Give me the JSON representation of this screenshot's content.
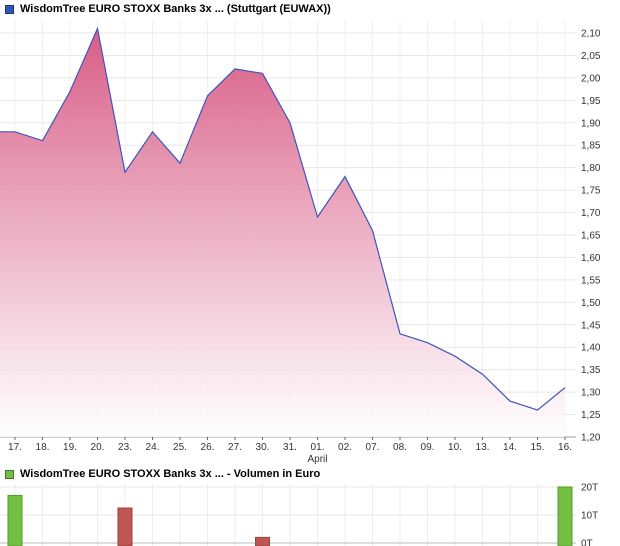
{
  "header": {
    "title": "WisdomTree EURO STOXX Banks 3x ... (Stuttgart (EUWAX))"
  },
  "volume_header": {
    "title": "WisdomTree EURO STOXX Banks 3x ... - Volumen in Euro"
  },
  "colors": {
    "accent_blue": "#2d58b8",
    "accent_green": "#74c042",
    "line": "#3d56b8",
    "fill_top": "#d6527e",
    "fill_bottom": "#ffffff",
    "bar_green": "#74c042",
    "bar_green_border": "#559a2b",
    "bar_red": "#bf5652",
    "bar_red_border": "#9e423f",
    "grid": "#e7e7e7",
    "grid_vertical": "#f0f0f0",
    "axis": "#999999",
    "tick": "#666666",
    "text": "#333333"
  },
  "chart_data": [
    {
      "type": "area",
      "title": "WisdomTree EURO STOXX Banks 3x ... (Stuttgart (EUWAX))",
      "x_tick_labels": [
        "17.",
        "18.",
        "19.",
        "20.",
        "23.",
        "24.",
        "25.",
        "26.",
        "27.",
        "30.",
        "31.",
        "01.",
        "02.",
        "07.",
        "08.",
        "09.",
        "10.",
        "13.",
        "14.",
        "15.",
        "16."
      ],
      "month_label": "April",
      "month_label_at_index": 11,
      "values": [
        1.88,
        1.86,
        1.97,
        2.11,
        1.79,
        1.88,
        1.81,
        1.96,
        2.02,
        2.01,
        1.9,
        1.69,
        1.78,
        1.66,
        1.43,
        1.41,
        1.38,
        1.34,
        1.28,
        1.26,
        1.31
      ],
      "ylim": [
        1.2,
        2.125
      ],
      "grid": true,
      "legend_position": "none",
      "y_ticks": [
        {
          "value": 2.1,
          "label": "2,10"
        },
        {
          "value": 2.05,
          "label": "2,05"
        },
        {
          "value": 2.0,
          "label": "2,00"
        },
        {
          "value": 1.95,
          "label": "1,95"
        },
        {
          "value": 1.9,
          "label": "1,90"
        },
        {
          "value": 1.85,
          "label": "1,85"
        },
        {
          "value": 1.8,
          "label": "1,80"
        },
        {
          "value": 1.75,
          "label": "1,75"
        },
        {
          "value": 1.7,
          "label": "1,70"
        },
        {
          "value": 1.65,
          "label": "1,65"
        },
        {
          "value": 1.6,
          "label": "1,60"
        },
        {
          "value": 1.55,
          "label": "1,55"
        },
        {
          "value": 1.5,
          "label": "1,50"
        },
        {
          "value": 1.45,
          "label": "1,45"
        },
        {
          "value": 1.4,
          "label": "1,40"
        },
        {
          "value": 1.35,
          "label": "1,35"
        },
        {
          "value": 1.3,
          "label": "1,30"
        },
        {
          "value": 1.25,
          "label": "1,25"
        },
        {
          "value": 1.2,
          "label": "1,20"
        }
      ]
    },
    {
      "type": "bar",
      "title": "WisdomTree EURO STOXX Banks 3x ... - Volumen in Euro",
      "ylabel": "Volumen in Euro",
      "ylim": [
        0,
        21
      ],
      "y_ticks": [
        {
          "value": 20,
          "label": "20T"
        },
        {
          "value": 10,
          "label": "10T"
        },
        {
          "value": 0,
          "label": "0T"
        }
      ],
      "bars": [
        {
          "x_label": "17.",
          "index": 0,
          "value": 17,
          "color": "green"
        },
        {
          "x_label": "23.",
          "index": 4,
          "value": 12.5,
          "color": "red"
        },
        {
          "x_label": "30.",
          "index": 9,
          "value": 2,
          "color": "red"
        },
        {
          "x_label": "16.",
          "index": 20,
          "value": 20,
          "color": "green"
        }
      ]
    }
  ]
}
